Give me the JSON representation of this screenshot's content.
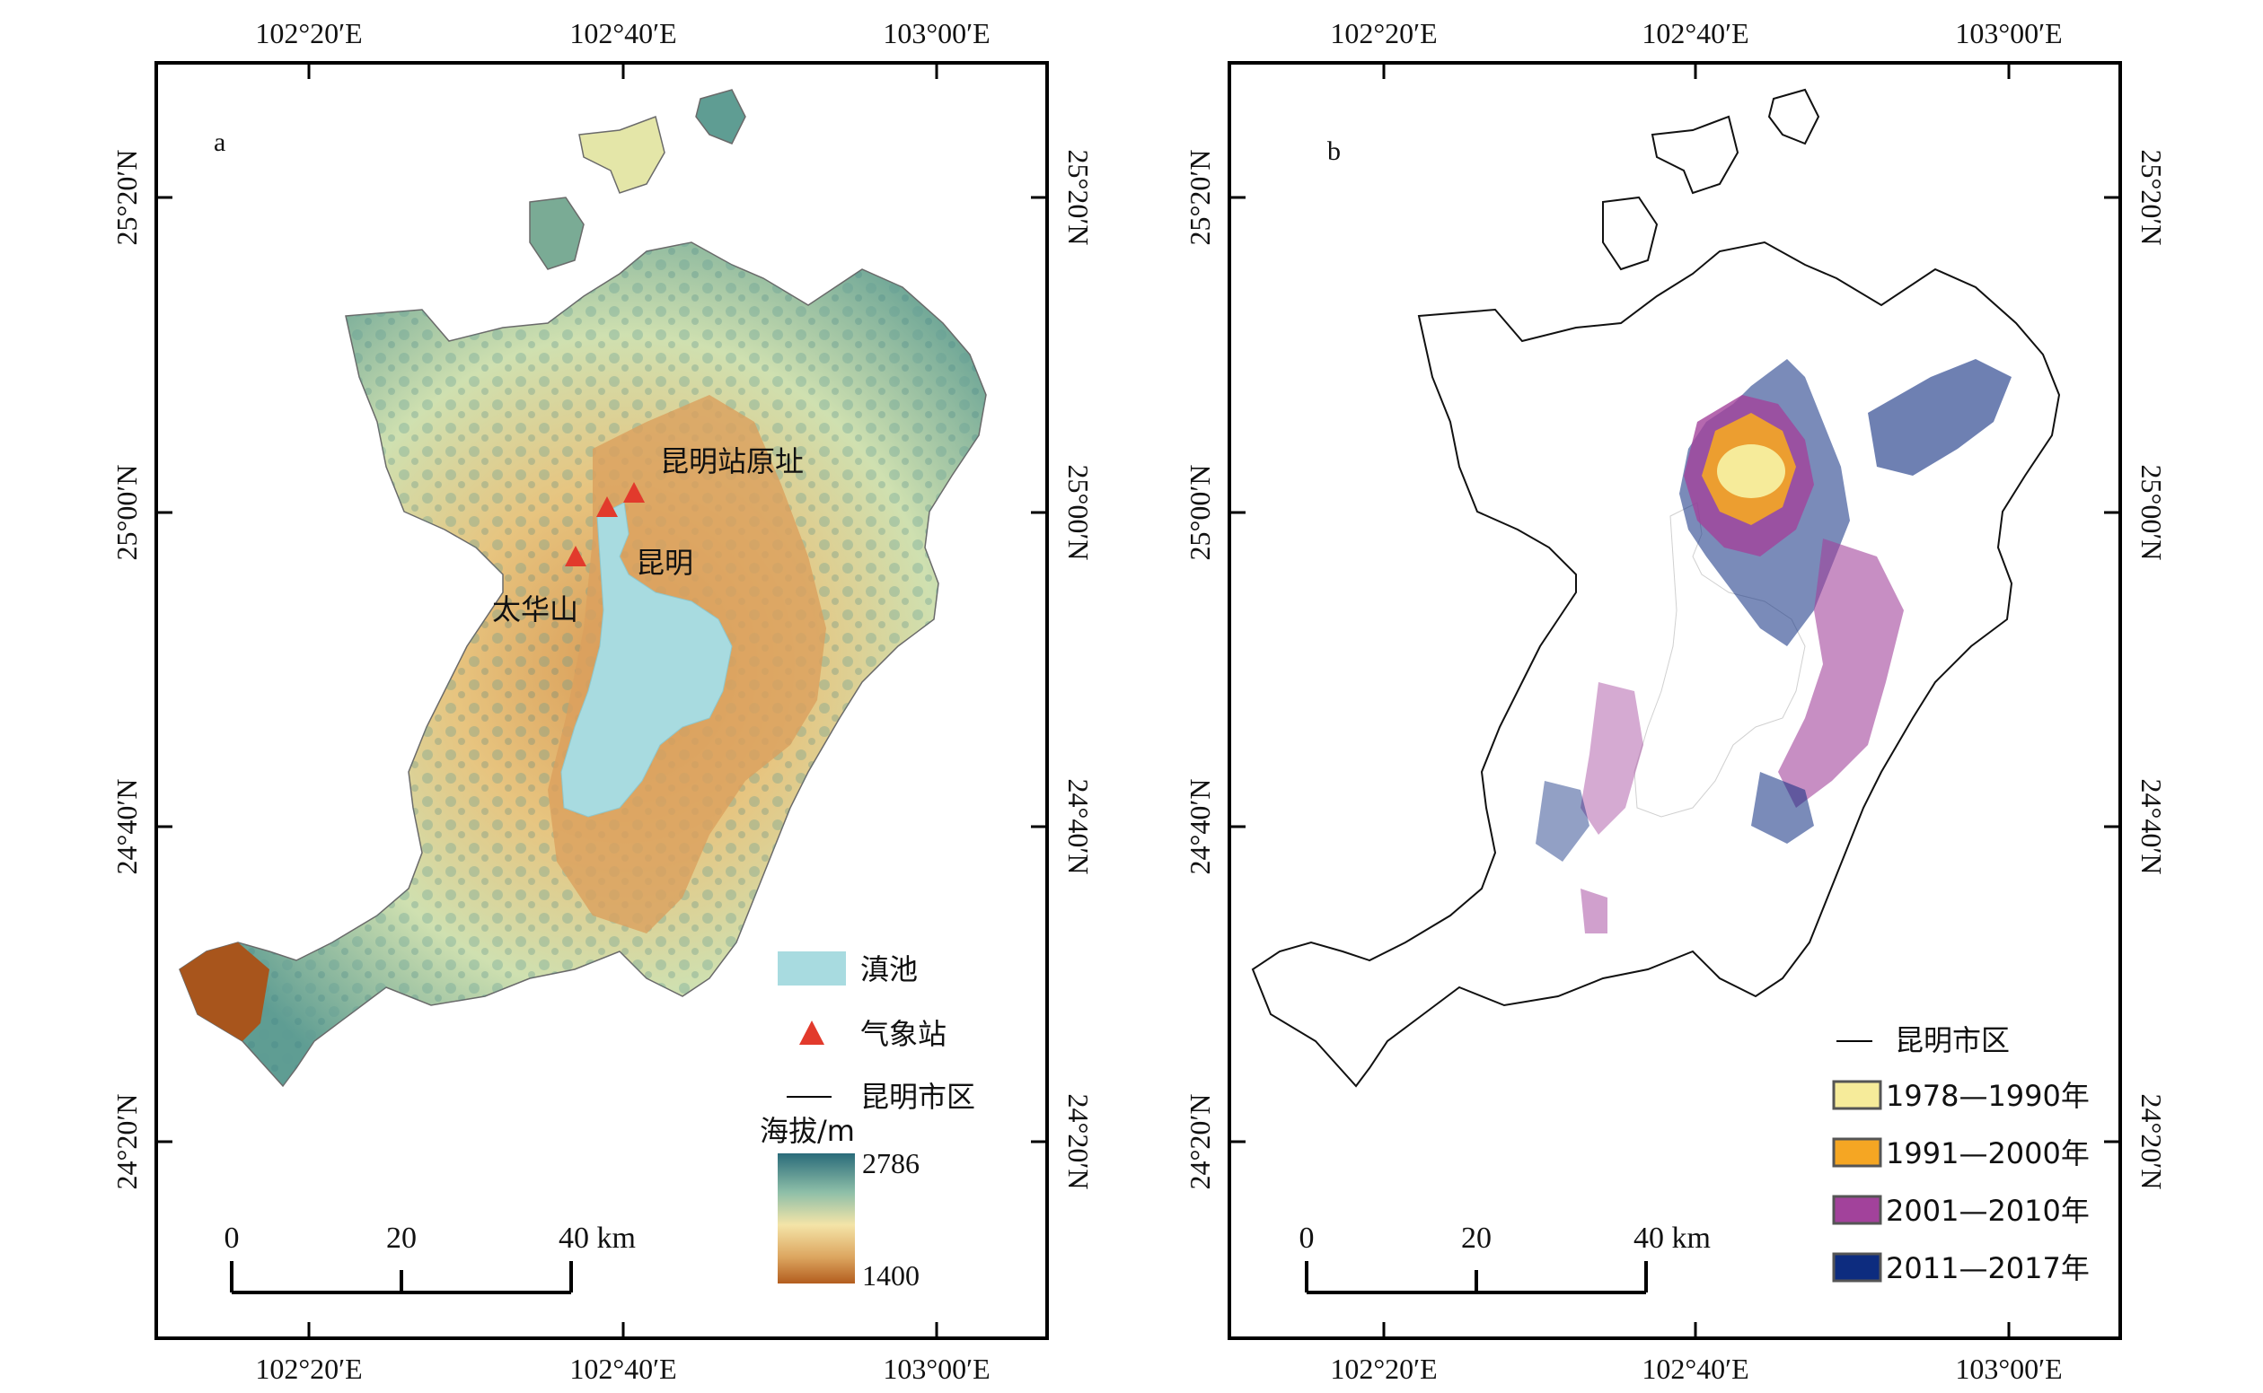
{
  "panels": [
    {
      "label": "a",
      "lon_labels": [
        "102°20′E",
        "102°40′E",
        "103°00′E"
      ],
      "lat_labels": [
        "25°20′N",
        "25°00′N",
        "24°40′N",
        "24°20′N"
      ],
      "places": {
        "station_old": "昆明站原址",
        "kunming": "昆明",
        "taihuashan": "太华山"
      },
      "legend": {
        "lake": "滇池",
        "station": "气象站",
        "boundary": "昆明市区",
        "elev_title": "海拔/m",
        "elev_max": "2786",
        "elev_min": "1400"
      },
      "scale": {
        "t0": "0",
        "t1": "20",
        "t2": "40 km"
      }
    },
    {
      "label": "b",
      "lon_labels": [
        "102°20′E",
        "102°40′E",
        "103°00′E"
      ],
      "lat_labels": [
        "25°20′N",
        "25°00′N",
        "24°40′N",
        "24°20′N"
      ],
      "legend": {
        "boundary": "昆明市区",
        "periods": [
          {
            "label": "1978—1990年",
            "color": "#f6eb9a"
          },
          {
            "label": "1991—2000年",
            "color": "#f5a623"
          },
          {
            "label": "2001—2010年",
            "color": "#a2429b"
          },
          {
            "label": "2011—2017年",
            "color": "#0d2c7f"
          }
        ]
      },
      "scale": {
        "t0": "0",
        "t1": "20",
        "t2": "40 km"
      }
    }
  ],
  "colors": {
    "lake": "#a8dbe0",
    "station_marker": "#e23a2c",
    "elev_high": "#2a6b7a",
    "elev_mid": "#f4e4a8",
    "elev_low": "#b35d1e"
  }
}
